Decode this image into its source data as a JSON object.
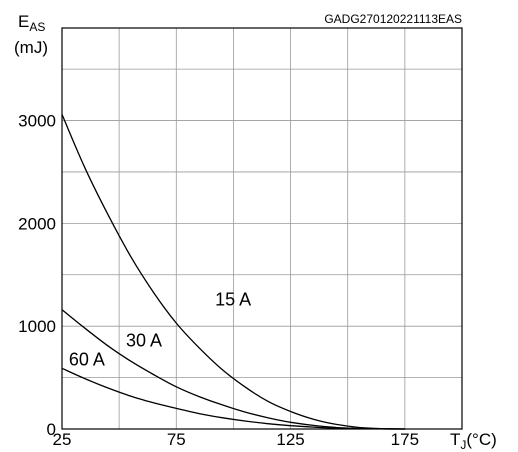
{
  "chart_data": {
    "type": "line",
    "code_label": "GADG270120221113EAS",
    "ylabel": {
      "main": "E",
      "sub": "AS",
      "unit": "(mJ)"
    },
    "xlabel": {
      "main": "T",
      "sub": "J",
      "unit": "(°C)"
    },
    "xlim": [
      25,
      200
    ],
    "ylim": [
      0,
      3900
    ],
    "x_ticks": [
      25,
      75,
      125,
      175
    ],
    "y_ticks": [
      0,
      1000,
      2000,
      3000
    ],
    "x_grid": [
      25,
      50,
      75,
      100,
      125,
      150,
      175,
      200
    ],
    "y_grid": [
      0,
      500,
      1000,
      1500,
      2000,
      2500,
      3000,
      3500,
      3900
    ],
    "grid": true,
    "series": [
      {
        "name": "15 A",
        "label_at": {
          "x": 92,
          "y": 1200
        },
        "x": [
          25,
          35,
          45,
          55,
          65,
          75,
          85,
          95,
          105,
          115,
          125,
          135,
          145,
          155,
          165,
          175
        ],
        "y": [
          3060,
          2540,
          2090,
          1680,
          1330,
          1030,
          790,
          580,
          410,
          270,
          170,
          95,
          45,
          15,
          3,
          0
        ]
      },
      {
        "name": "30 A",
        "label_at": {
          "x": 53,
          "y": 800
        },
        "x": [
          25,
          35,
          45,
          55,
          65,
          75,
          85,
          95,
          105,
          115,
          125,
          135,
          145,
          155,
          165,
          175
        ],
        "y": [
          1160,
          980,
          810,
          660,
          530,
          410,
          315,
          235,
          165,
          110,
          65,
          35,
          15,
          5,
          1,
          0
        ]
      },
      {
        "name": "60 A",
        "label_at": {
          "x": 28,
          "y": 620
        },
        "x": [
          25,
          35,
          45,
          55,
          65,
          75,
          85,
          95,
          105,
          115,
          125,
          135,
          145,
          155,
          165,
          175
        ],
        "y": [
          590,
          490,
          400,
          320,
          255,
          200,
          150,
          110,
          78,
          52,
          32,
          18,
          8,
          3,
          1,
          0
        ]
      }
    ]
  }
}
